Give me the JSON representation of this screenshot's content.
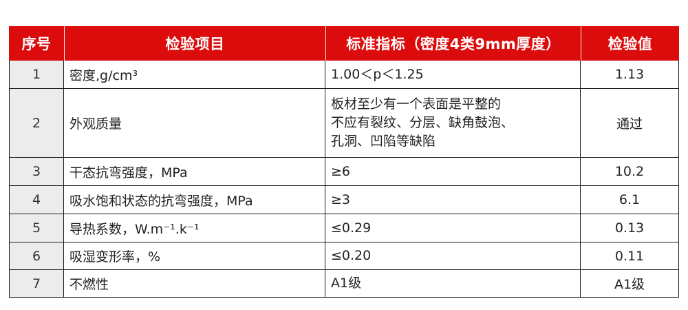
{
  "colors": {
    "header_bg": "#dc0b0c",
    "header_text": "#ffffff",
    "index_column_bg": "#ececec",
    "border": "#1a1a1a",
    "page_bg": "#ffffff"
  },
  "table": {
    "headers": [
      "序号",
      "检验项目",
      "标准指标（密度4类9mm厚度）",
      "检验值"
    ],
    "rows": [
      {
        "no": "1",
        "item": "密度,g/cm³",
        "standard": "1.00＜p＜1.25",
        "value": "1.13"
      },
      {
        "no": "2",
        "item": "外观质量",
        "standard": "板材至少有一个表面是平整的\n不应有裂纹、分层、缺角鼓泡、\n孔洞、凹陷等缺陷",
        "value": "通过"
      },
      {
        "no": "3",
        "item": "干态抗弯强度，MPa",
        "standard": "≥6",
        "value": "10.2"
      },
      {
        "no": "4",
        "item": "吸水饱和状态的抗弯强度，MPa",
        "standard": "≥3",
        "value": "6.1"
      },
      {
        "no": "5",
        "item": "导热系数，W.m⁻¹.k⁻¹",
        "standard": "≤0.29",
        "value": "0.13"
      },
      {
        "no": "6",
        "item": "吸湿变形率，%",
        "standard": "≤0.20",
        "value": "0.11"
      },
      {
        "no": "7",
        "item": "不燃性",
        "standard": "A1级",
        "value": "A1级"
      }
    ]
  }
}
